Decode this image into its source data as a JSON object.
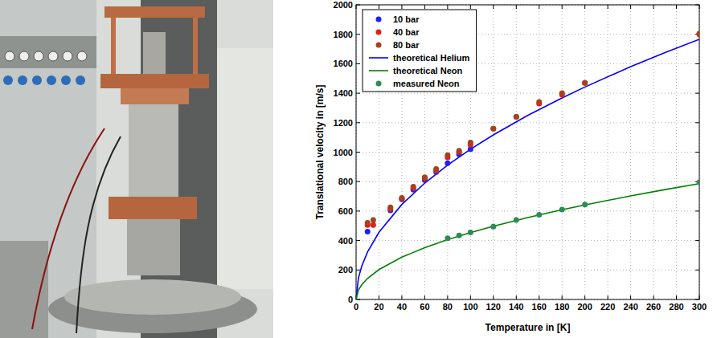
{
  "chart_data": {
    "type": "scatter",
    "x_label": "Temperature in [K]",
    "y_label": "Translational velocity in [m/s]",
    "xlim": [
      0,
      300
    ],
    "ylim": [
      0,
      2000
    ],
    "xticks": [
      0,
      20,
      40,
      60,
      80,
      100,
      120,
      140,
      160,
      180,
      200,
      220,
      240,
      260,
      280,
      300
    ],
    "yticks": [
      0,
      200,
      400,
      600,
      800,
      1000,
      1200,
      1400,
      1600,
      1800,
      2000
    ],
    "grid": true,
    "legend": "top-left",
    "series": [
      {
        "name": "10 bar",
        "type": "scatter",
        "marker": "circle",
        "color": "#1f1fff",
        "x": [
          10,
          30,
          40,
          50,
          60,
          70,
          80,
          90,
          100
        ],
        "values": [
          460,
          605,
          680,
          745,
          810,
          865,
          925,
          985,
          1020
        ]
      },
      {
        "name": "40 bar",
        "type": "scatter",
        "marker": "circle",
        "color": "#e0201c",
        "x": [
          10,
          15,
          30,
          40,
          50,
          60,
          70,
          80,
          90,
          100,
          120,
          140,
          160,
          180,
          200,
          300
        ],
        "values": [
          505,
          505,
          615,
          685,
          755,
          820,
          875,
          965,
          1000,
          1050,
          1160,
          1240,
          1330,
          1390,
          1470,
          1800
        ]
      },
      {
        "name": "80 bar",
        "type": "scatter",
        "marker": "circle",
        "color": "#a5421c",
        "x": [
          10,
          15,
          30,
          40,
          50,
          60,
          70,
          80,
          90,
          100,
          120,
          140,
          160,
          180,
          200,
          300
        ],
        "values": [
          520,
          540,
          625,
          690,
          765,
          830,
          885,
          980,
          1010,
          1065,
          1160,
          1240,
          1340,
          1400,
          1470,
          1805
        ]
      },
      {
        "name": "theoretical Helium",
        "type": "line",
        "line_style": "solid",
        "color": "#0000ff",
        "x": [
          0,
          2,
          5,
          10,
          20,
          40,
          60,
          80,
          100,
          120,
          150,
          180,
          200,
          240,
          270,
          300
        ],
        "values": [
          0,
          144,
          228,
          322,
          456,
          645,
          790,
          912,
          1020,
          1117,
          1249,
          1368,
          1442,
          1580,
          1676,
          1766
        ]
      },
      {
        "name": "theoretical Neon",
        "type": "line",
        "line_style": "solid",
        "color": "#008000",
        "x": [
          0,
          2,
          5,
          10,
          20,
          40,
          60,
          80,
          100,
          120,
          150,
          180,
          200,
          240,
          270,
          300
        ],
        "values": [
          0,
          64,
          101,
          143,
          203,
          287,
          351,
          406,
          454,
          497,
          556,
          609,
          642,
          703,
          746,
          786
        ]
      },
      {
        "name": "measured Neon",
        "type": "scatter",
        "marker": "circle",
        "color": "#2e8b57",
        "x": [
          80,
          90,
          100,
          120,
          140,
          160,
          180,
          200,
          300
        ],
        "values": [
          415,
          435,
          455,
          495,
          540,
          575,
          610,
          645,
          795
        ]
      }
    ]
  }
}
